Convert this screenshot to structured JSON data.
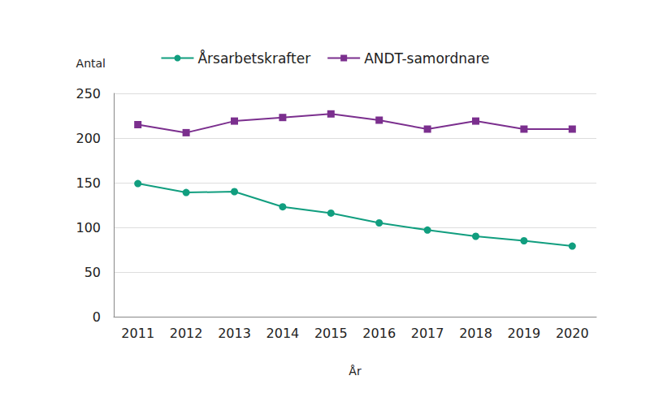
{
  "chart_data": {
    "type": "line",
    "xlabel": "År",
    "ylabel": "Antal",
    "categories": [
      "2011",
      "2012",
      "2013",
      "2014",
      "2015",
      "2016",
      "2017",
      "2018",
      "2019",
      "2020"
    ],
    "series": [
      {
        "name": "Årsarbetskrafter",
        "color": "#119e7f",
        "marker": "circle",
        "values": [
          149,
          139,
          140,
          123,
          116,
          105,
          97,
          90,
          85,
          79
        ]
      },
      {
        "name": "ANDT-samordnare",
        "color": "#7b2f8e",
        "marker": "square",
        "values": [
          215,
          206,
          219,
          223,
          227,
          220,
          210,
          219,
          210,
          210
        ]
      }
    ],
    "ylim": [
      0,
      250
    ],
    "yticks": [
      0,
      50,
      100,
      150,
      200,
      250
    ],
    "grid": true,
    "legend": "top"
  }
}
